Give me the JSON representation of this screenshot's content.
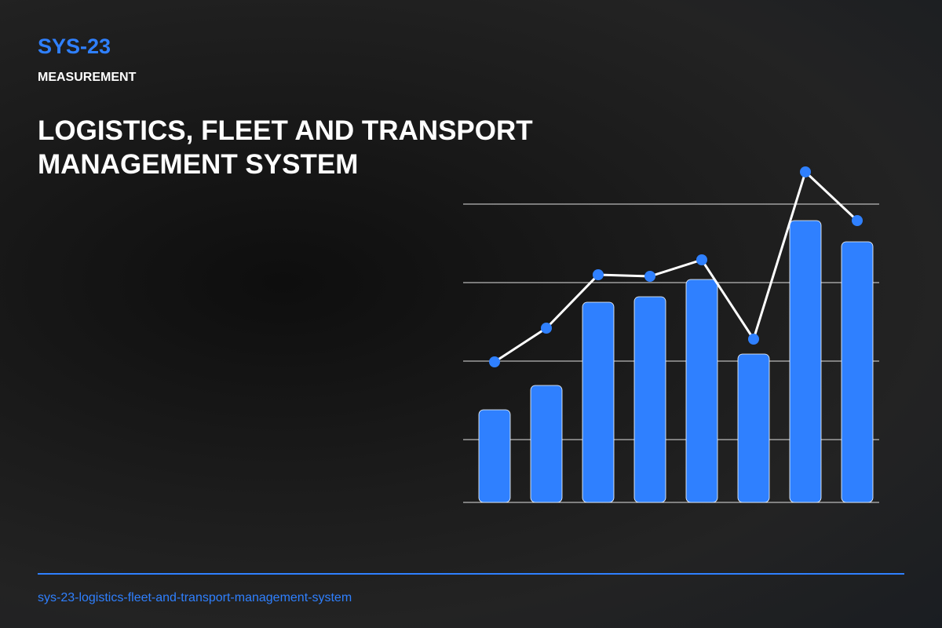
{
  "header": {
    "code": "SYS-23",
    "category": "MEASUREMENT",
    "title": "LOGISTICS, FLEET AND TRANSPORT MANAGEMENT SYSTEM"
  },
  "footer": {
    "slug": "sys-23-logistics-fleet-and-transport-management-system"
  },
  "chart_data": {
    "type": "combo",
    "ylim": [
      0,
      430
    ],
    "yticks": [
      80,
      180,
      280,
      380
    ],
    "grid": true,
    "series": [
      {
        "type": "bar",
        "color": "#2f80ff",
        "values": [
          118,
          149,
          255,
          262,
          284,
          189,
          359,
          332
        ]
      },
      {
        "type": "line",
        "color": "#ffffff",
        "marker_color": "#2f80ff",
        "values": [
          179,
          222,
          290,
          288,
          309,
          208,
          421,
          359
        ]
      }
    ]
  }
}
